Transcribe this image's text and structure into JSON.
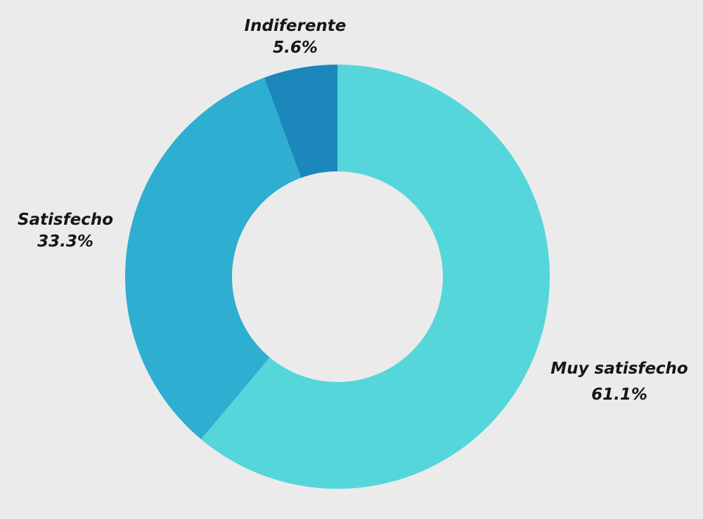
{
  "chart_data": {
    "type": "pie",
    "variant": "donut",
    "title": "",
    "categories": [
      "Muy satisfecho",
      "Satisfecho",
      "Indiferente"
    ],
    "values": [
      61.1,
      33.3,
      5.6
    ],
    "value_labels": [
      "61.1%",
      "33.3%",
      "5.6%"
    ],
    "colors": [
      "#55d6da",
      "#2eaed1",
      "#1b87bb"
    ],
    "start_angle_deg": 0,
    "direction": "clockwise",
    "legend": "none",
    "labels_position": "outside"
  },
  "colors": {
    "background": "#ebebeb",
    "label_text": "#161616"
  },
  "labels": [
    {
      "name": "Muy satisfecho",
      "value": "61.1%"
    },
    {
      "name": "Satisfecho",
      "value": "33.3%"
    },
    {
      "name": "Indiferente",
      "value": "5.6%"
    }
  ]
}
